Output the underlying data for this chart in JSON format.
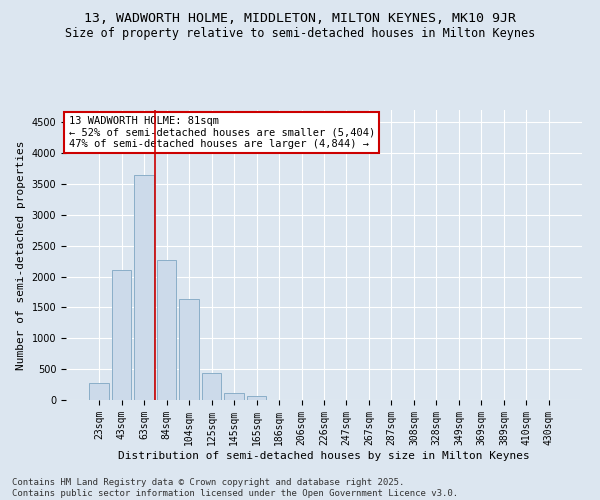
{
  "title_line1": "13, WADWORTH HOLME, MIDDLETON, MILTON KEYNES, MK10 9JR",
  "title_line2": "Size of property relative to semi-detached houses in Milton Keynes",
  "xlabel": "Distribution of semi-detached houses by size in Milton Keynes",
  "ylabel": "Number of semi-detached properties",
  "categories": [
    "23sqm",
    "43sqm",
    "63sqm",
    "84sqm",
    "104sqm",
    "125sqm",
    "145sqm",
    "165sqm",
    "186sqm",
    "206sqm",
    "226sqm",
    "247sqm",
    "267sqm",
    "287sqm",
    "308sqm",
    "328sqm",
    "349sqm",
    "369sqm",
    "389sqm",
    "410sqm",
    "430sqm"
  ],
  "values": [
    270,
    2100,
    3650,
    2270,
    1630,
    430,
    120,
    70,
    0,
    0,
    0,
    0,
    0,
    0,
    0,
    0,
    0,
    0,
    0,
    0,
    0
  ],
  "bar_color": "#ccdaea",
  "bar_edge_color": "#8aaec8",
  "vline_x_index": 2.5,
  "vline_color": "#cc0000",
  "annotation_text": "13 WADWORTH HOLME: 81sqm\n← 52% of semi-detached houses are smaller (5,404)\n47% of semi-detached houses are larger (4,844) →",
  "annotation_box_facecolor": "#ffffff",
  "annotation_box_edgecolor": "#cc0000",
  "ylim": [
    0,
    4700
  ],
  "yticks": [
    0,
    500,
    1000,
    1500,
    2000,
    2500,
    3000,
    3500,
    4000,
    4500
  ],
  "background_color": "#dce6f0",
  "plot_background_color": "#dce6f0",
  "footer_text": "Contains HM Land Registry data © Crown copyright and database right 2025.\nContains public sector information licensed under the Open Government Licence v3.0.",
  "title1_fontsize": 9.5,
  "title2_fontsize": 8.5,
  "axis_label_fontsize": 8,
  "tick_fontsize": 7,
  "annotation_fontsize": 7.5,
  "footer_fontsize": 6.5
}
